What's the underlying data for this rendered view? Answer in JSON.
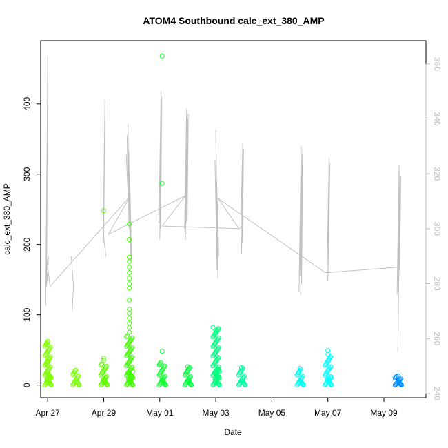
{
  "chart_data": {
    "type": "scatter",
    "title": "ATOM4 Southbound calc_ext_380_AMP",
    "xlabel": "Date",
    "ylabel": "calc_ext_380_AMP",
    "x_axis": {
      "type": "date",
      "range": [
        "2023-04-26T18:00",
        "2023-05-10T12:00"
      ],
      "ticks": [
        "2023-04-27",
        "2023-04-29",
        "2023-05-01",
        "2023-05-03",
        "2023-05-05",
        "2023-05-07",
        "2023-05-09"
      ],
      "tick_labels": [
        "Apr 27",
        "Apr 29",
        "May 01",
        "May 03",
        "May 05",
        "May 07",
        "May 09"
      ]
    },
    "y_left": {
      "range": [
        -18,
        490
      ],
      "ticks": [
        0,
        100,
        200,
        300,
        400
      ]
    },
    "y_right": {
      "range": [
        238.5,
        368.5
      ],
      "ticks": [
        240,
        260,
        280,
        300,
        320,
        340,
        360
      ],
      "color": "#bdbdbd"
    },
    "grid": false,
    "point_series": {
      "marker": "open-circle",
      "color_gradient": [
        "#7fff00",
        "#00ff3f",
        "#00ffff",
        "#0090ff"
      ],
      "clusters": [
        {
          "x": "2023-04-27T00:00",
          "max": 60,
          "color": "#80ff00",
          "extra": [
            62,
            57,
            38,
            33,
            28
          ]
        },
        {
          "x": "2023-04-28T00:00",
          "max": 20,
          "color": "#7aff00",
          "extra": [
            21
          ]
        },
        {
          "x": "2023-04-29T00:00",
          "max": 30,
          "color": "#60ff00",
          "extra": [
            248,
            38,
            35
          ]
        },
        {
          "x": "2023-04-29T22:00",
          "max": 70,
          "color": "#3fff00",
          "extra": [
            229,
            207,
            182,
            176,
            168,
            160,
            152,
            144,
            138,
            121,
            108,
            102,
            95,
            88,
            82,
            75
          ]
        },
        {
          "x": "2023-05-01T02:00",
          "max": 32,
          "color": "#10ff30",
          "extra": [
            468,
            287,
            48
          ]
        },
        {
          "x": "2023-05-02T00:00",
          "max": 25,
          "color": "#00ff40",
          "extra": [
            26
          ]
        },
        {
          "x": "2023-05-03T00:00",
          "max": 82,
          "color": "#00ff80",
          "extra": [
            78,
            74
          ]
        },
        {
          "x": "2023-05-03T22:00",
          "max": 24,
          "color": "#00ffa0",
          "extra": [
            25
          ]
        },
        {
          "x": "2023-05-06T00:00",
          "max": 22,
          "color": "#00fff0",
          "extra": [
            24
          ]
        },
        {
          "x": "2023-05-07T00:00",
          "max": 40,
          "color": "#00ffff",
          "extra": [
            49,
            44
          ]
        },
        {
          "x": "2023-05-09T12:00",
          "max": 12,
          "color": "#0090ff",
          "extra": [
            13
          ]
        }
      ]
    },
    "line_series": {
      "axis": "right",
      "color": "#c0c0c0",
      "description": "secondary trace",
      "segments": [
        {
          "x": "2023-04-26T23:00",
          "y": [
            272,
            363,
            279,
            290,
            285
          ]
        },
        {
          "x": "2023-04-27T21:00",
          "y": [
            290,
            279,
            270
          ]
        },
        {
          "x": "2023-04-29T00:00",
          "y": [
            289,
            347,
            297,
            290
          ]
        },
        {
          "x": "2023-04-29T20:00",
          "y": [
            327,
            310,
            334,
            300,
            338,
            295,
            328,
            290,
            320,
            288
          ]
        },
        {
          "x": "2023-05-01T00:00",
          "y": [
            302,
            350,
            296,
            348,
            300
          ]
        },
        {
          "x": "2023-05-01T22:00",
          "y": [
            300,
            344,
            296,
            340,
            302,
            342,
            298
          ]
        },
        {
          "x": "2023-05-03T00:00",
          "y": [
            325,
            285,
            336,
            282,
            318,
            290,
            310
          ]
        },
        {
          "x": "2023-05-03T22:00",
          "y": [
            300,
            331,
            291,
            329,
            295
          ]
        },
        {
          "x": "2023-05-06T00:00",
          "y": [
            277,
            330,
            283,
            327,
            276,
            329,
            280
          ]
        },
        {
          "x": "2023-05-07T00:00",
          "y": [
            285,
            326,
            281,
            324
          ]
        },
        {
          "x": "2023-05-09T12:00",
          "y": [
            276,
            323,
            255,
            321,
            280,
            319,
            285
          ]
        }
      ],
      "connectors": [
        {
          "x": "2023-04-26T23:00",
          "y": 290
        },
        {
          "x": "2023-04-27T02:00",
          "y": 279
        },
        {
          "x": "2023-04-29T23:00",
          "y": 312
        },
        {
          "x": "2023-04-29T04:00",
          "y": 298
        },
        {
          "x": "2023-05-01T22:00",
          "y": 312
        },
        {
          "x": "2023-05-01T02:00",
          "y": 301
        },
        {
          "x": "2023-05-03T20:00",
          "y": 300
        },
        {
          "x": "2023-05-03T02:00",
          "y": 311
        },
        {
          "x": "2023-05-06T22:00",
          "y": 284
        },
        {
          "x": "2023-05-09T12:00",
          "y": 286
        }
      ]
    }
  }
}
